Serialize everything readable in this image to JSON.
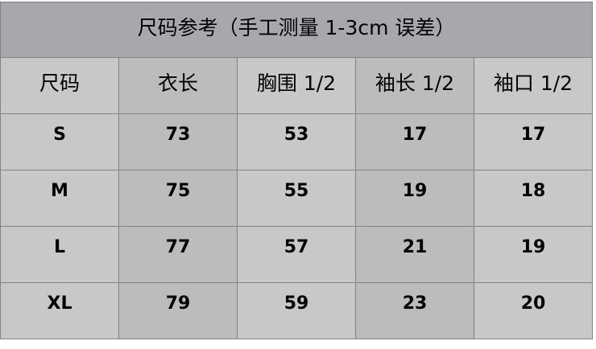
{
  "title": "尺码参考（手工测量 1-3cm 误差）",
  "headers": [
    "尺码",
    "衣长",
    "胸围 1/2",
    "袖长 1/2",
    "袖口 1/2"
  ],
  "rows": [
    [
      "S",
      "73",
      "53",
      "17",
      "17"
    ],
    [
      "M",
      "75",
      "55",
      "19",
      "18"
    ],
    [
      "L",
      "77",
      "57",
      "21",
      "19"
    ],
    [
      "XL",
      "79",
      "59",
      "23",
      "20"
    ]
  ],
  "colors": {
    "title_bg": "#a6a8ab",
    "cell_bg": "#c8c8c8",
    "alt_col_bg": "#bcbcbc",
    "border": "#808285"
  }
}
